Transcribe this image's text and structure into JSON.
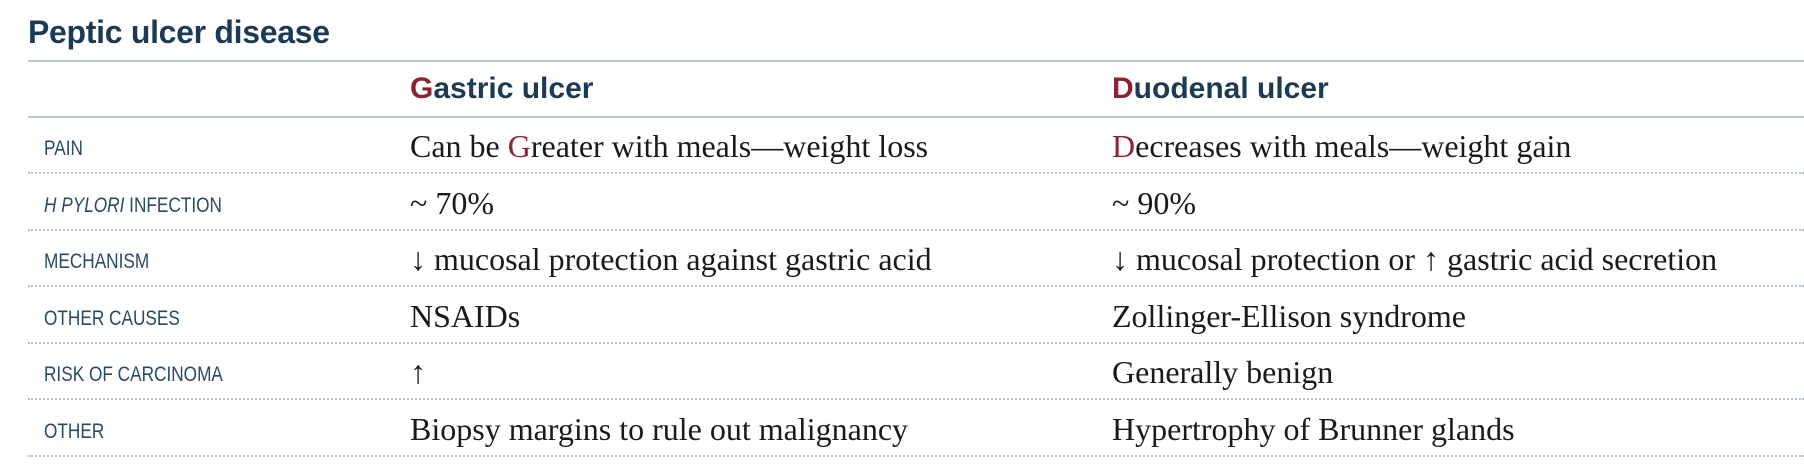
{
  "title": "Peptic ulcer disease",
  "columns": [
    {
      "accent": "G",
      "rest": "astric ulcer"
    },
    {
      "accent": "D",
      "rest": "uodenal ulcer"
    }
  ],
  "rows": [
    {
      "label_italic": "",
      "label": "Pain",
      "gastric": {
        "pre": "Can be ",
        "accent": "G",
        "post": "reater with meals—weight loss"
      },
      "duodenal": {
        "pre": "",
        "accent": "D",
        "post": "ecreases with meals—weight gain"
      }
    },
    {
      "label_italic": "H pylori",
      "label": " infection",
      "gastric": {
        "pre": "~ 70%",
        "accent": "",
        "post": ""
      },
      "duodenal": {
        "pre": "~ 90%",
        "accent": "",
        "post": ""
      }
    },
    {
      "label_italic": "",
      "label": "Mechanism",
      "gastric": {
        "pre": "↓ mucosal protection against gastric acid",
        "accent": "",
        "post": ""
      },
      "duodenal": {
        "pre": "↓ mucosal protection or ↑ gastric acid secretion",
        "accent": "",
        "post": ""
      }
    },
    {
      "label_italic": "",
      "label": "Other causes",
      "gastric": {
        "pre": "NSAIDs",
        "accent": "",
        "post": ""
      },
      "duodenal": {
        "pre": "Zollinger-Ellison syndrome",
        "accent": "",
        "post": ""
      }
    },
    {
      "label_italic": "",
      "label": "Risk of carcinoma",
      "gastric": {
        "pre": "↑",
        "accent": "",
        "post": ""
      },
      "duodenal": {
        "pre": "Generally benign",
        "accent": "",
        "post": ""
      }
    },
    {
      "label_italic": "",
      "label": "Other",
      "gastric": {
        "pre": "Biopsy margins to rule out malignancy",
        "accent": "",
        "post": ""
      },
      "duodenal": {
        "pre": "Hypertrophy of Brunner glands",
        "accent": "",
        "post": ""
      }
    }
  ],
  "colors": {
    "heading": "#1e3a52",
    "accent": "#8b2332",
    "rule": "#b9c8d2"
  }
}
